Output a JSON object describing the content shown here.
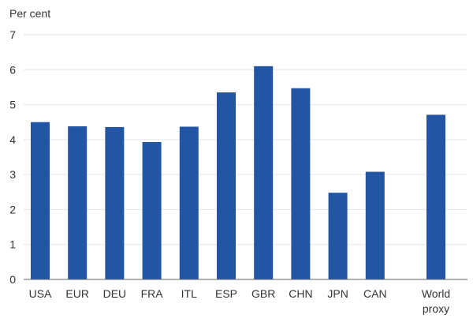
{
  "chart_data": {
    "type": "bar",
    "title": "",
    "ylabel": "Per cent",
    "xlabel": "",
    "ylim": [
      0,
      7
    ],
    "yticks": [
      0,
      1,
      2,
      3,
      4,
      5,
      6,
      7
    ],
    "grid": true,
    "legend": "none",
    "bar_color": "#2255a4",
    "categories": [
      "USA",
      "EUR",
      "DEU",
      "FRA",
      "ITL",
      "ESP",
      "GBR",
      "CHN",
      "JPN",
      "CAN",
      "World proxy"
    ],
    "values": [
      4.5,
      4.38,
      4.36,
      3.93,
      4.37,
      5.35,
      6.1,
      5.47,
      2.48,
      3.08,
      4.71
    ]
  }
}
